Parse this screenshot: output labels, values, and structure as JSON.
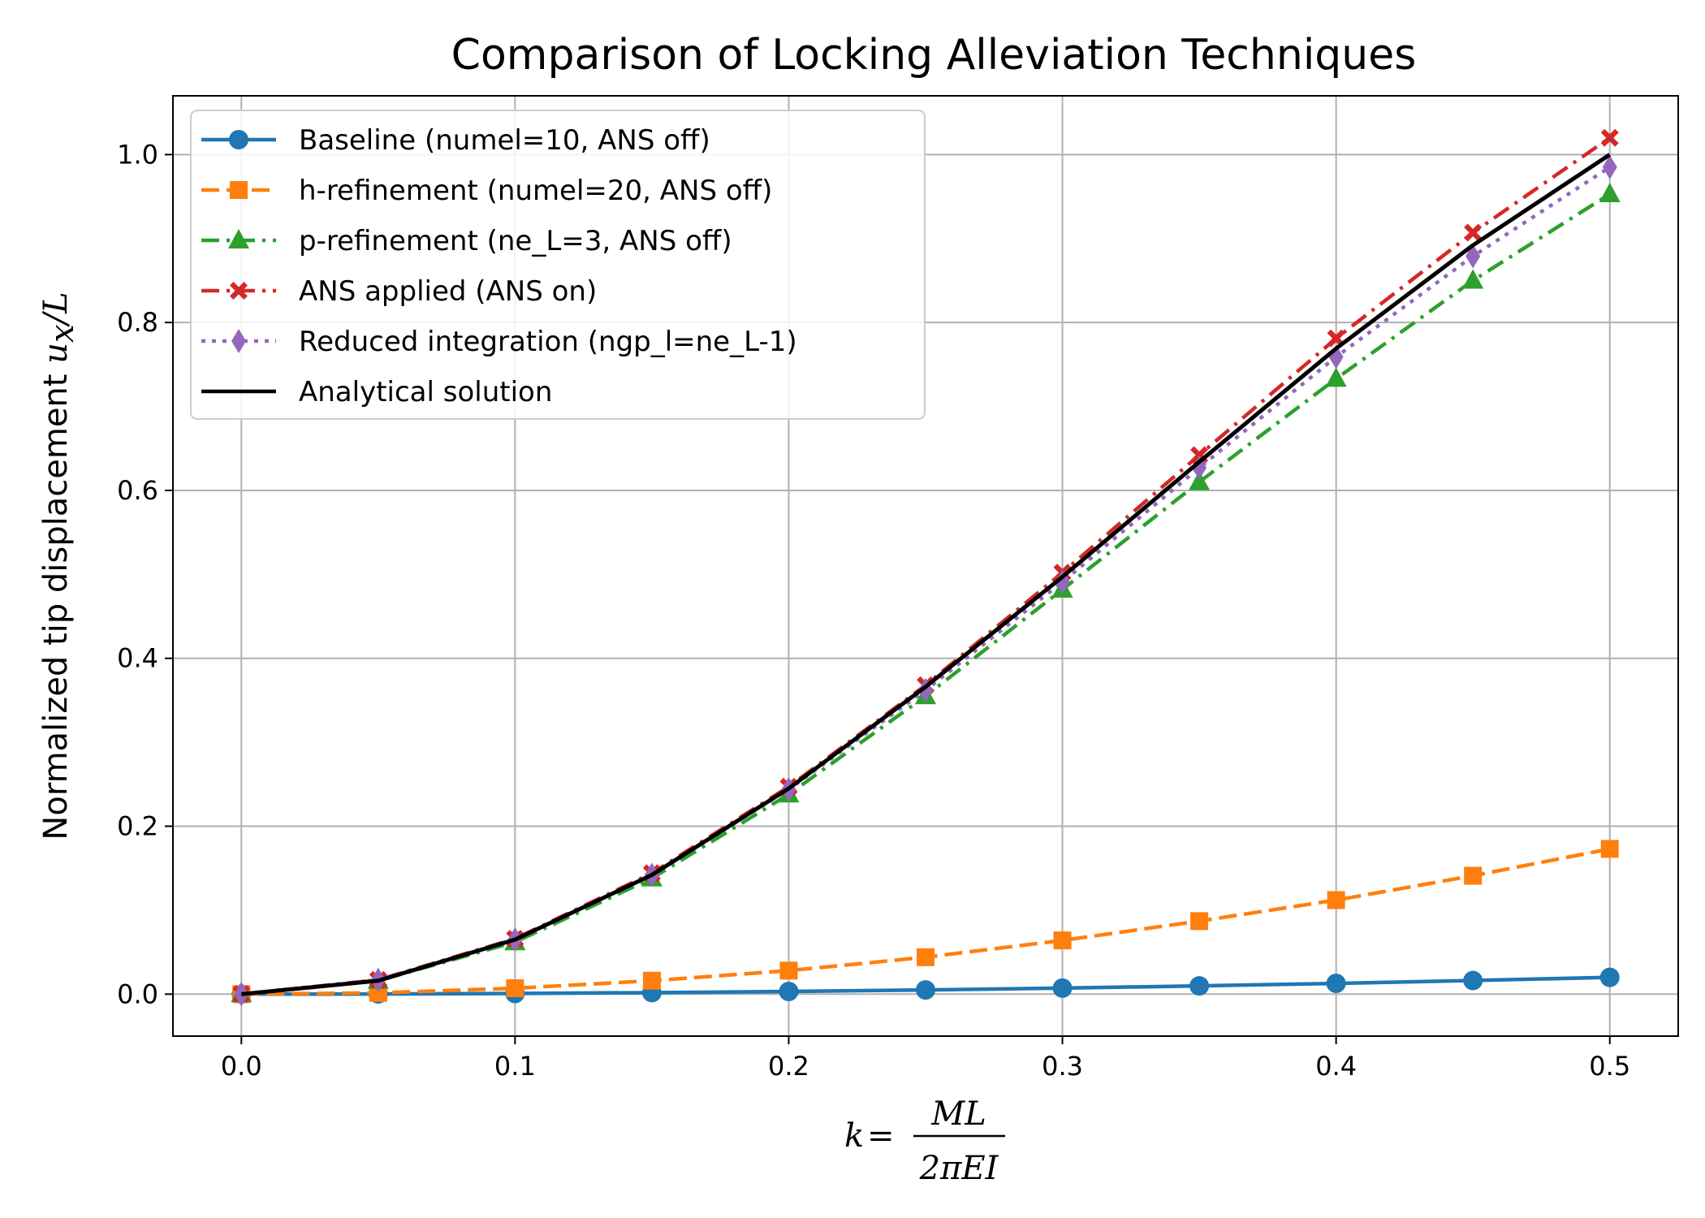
{
  "chart_data": {
    "type": "line",
    "title": "Comparison of Locking Alleviation Techniques",
    "ylabel": "Normalized tip displacement u_x/L",
    "ylabel_prefix": "Normalized tip displacement ",
    "ylabel_math": "u",
    "ylabel_math_sub": "x",
    "ylabel_math_tail": "/L",
    "xlabel": "k = ML / 2πEI",
    "xlabel_k": "k",
    "xlabel_eq": "=",
    "xlabel_num": "ML",
    "xlabel_den": "2πEI",
    "xlim": [
      -0.025,
      0.525
    ],
    "ylim": [
      -0.05,
      1.07
    ],
    "xticks": [
      0.0,
      0.1,
      0.2,
      0.3,
      0.4,
      0.5
    ],
    "xtick_labels": [
      "0.0",
      "0.1",
      "0.2",
      "0.3",
      "0.4",
      "0.5"
    ],
    "yticks": [
      0.0,
      0.2,
      0.4,
      0.6,
      0.8,
      1.0
    ],
    "ytick_labels": [
      "0.0",
      "0.2",
      "0.4",
      "0.6",
      "0.8",
      "1.0"
    ],
    "grid": true,
    "legend_position": "top-left",
    "x": [
      0.0,
      0.05,
      0.1,
      0.15,
      0.2,
      0.25,
      0.3,
      0.35,
      0.4,
      0.45,
      0.5
    ],
    "series": [
      {
        "name": "Baseline (numel=10, ANS off)",
        "color": "#1f77b4",
        "linestyle": "solid",
        "marker": "circle",
        "values": [
          0.0,
          0.0002,
          0.0008,
          0.0018,
          0.0032,
          0.005,
          0.0072,
          0.0098,
          0.0128,
          0.0162,
          0.02
        ]
      },
      {
        "name": "h-refinement (numel=20, ANS off)",
        "color": "#ff7f0e",
        "linestyle": "dashed",
        "marker": "square",
        "values": [
          0.0,
          0.0015,
          0.007,
          0.016,
          0.028,
          0.044,
          0.064,
          0.087,
          0.112,
          0.141,
          0.173
        ]
      },
      {
        "name": "p-refinement (ne_L=3, ANS off)",
        "color": "#2ca02c",
        "linestyle": "dashdot",
        "marker": "triangle",
        "values": [
          0.0,
          0.016,
          0.062,
          0.138,
          0.238,
          0.355,
          0.482,
          0.61,
          0.733,
          0.85,
          0.953
        ]
      },
      {
        "name": "ANS applied (ANS on)",
        "color": "#d62728",
        "linestyle": "dashdot",
        "marker": "x",
        "values": [
          0.0,
          0.017,
          0.066,
          0.144,
          0.247,
          0.368,
          0.502,
          0.642,
          0.781,
          0.907,
          1.02
        ]
      },
      {
        "name": "Reduced integration (ngp_l=ne_L-1)",
        "color": "#9467bd",
        "linestyle": "dotted",
        "marker": "diamond",
        "values": [
          0.0,
          0.017,
          0.065,
          0.142,
          0.244,
          0.362,
          0.491,
          0.627,
          0.759,
          0.879,
          0.985
        ]
      },
      {
        "name": "Analytical solution",
        "color": "#000000",
        "linestyle": "solid",
        "marker": "none",
        "values": [
          0.0,
          0.016,
          0.065,
          0.142,
          0.245,
          0.366,
          0.497,
          0.634,
          0.769,
          0.892,
          1.0
        ]
      }
    ]
  }
}
